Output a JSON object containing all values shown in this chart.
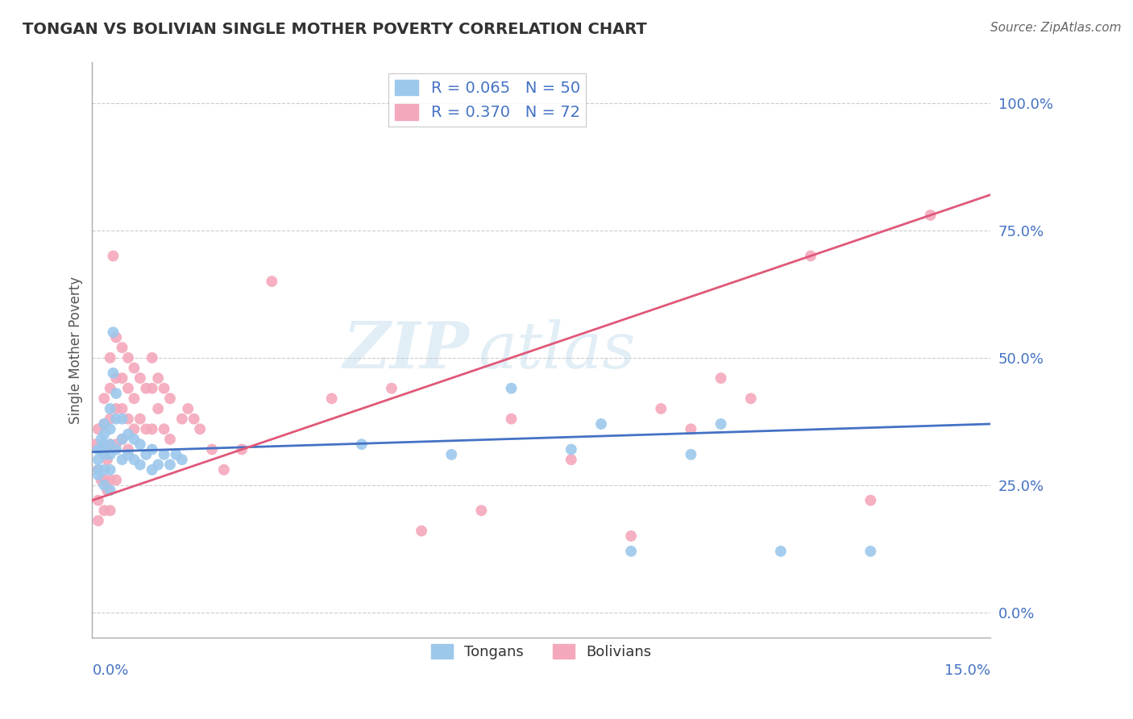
{
  "title": "TONGAN VS BOLIVIAN SINGLE MOTHER POVERTY CORRELATION CHART",
  "source": "Source: ZipAtlas.com",
  "ylabel": "Single Mother Poverty",
  "y_ticks": [
    0.0,
    0.25,
    0.5,
    0.75,
    1.0
  ],
  "y_tick_labels": [
    "0.0%",
    "25.0%",
    "50.0%",
    "75.0%",
    "100.0%"
  ],
  "xlim": [
    0.0,
    0.15
  ],
  "ylim": [
    -0.05,
    1.08
  ],
  "tongan_R": 0.065,
  "tongan_N": 50,
  "bolivian_R": 0.37,
  "bolivian_N": 72,
  "tongan_color": "#9CC8EC",
  "bolivian_color": "#F4A8BC",
  "tongan_line_color": "#4472C4",
  "bolivian_line_color": "#E05878",
  "watermark_zip": "ZIP",
  "watermark_atlas": "atlas",
  "background_color": "#FFFFFF",
  "grid_color": "#CCCCCC",
  "tick_label_color": "#4472C4",
  "tongan_line_y0": 0.315,
  "tongan_line_y1": 0.37,
  "bolivian_line_y0": 0.22,
  "bolivian_line_y1": 0.82,
  "tongan_x": [
    0.001,
    0.001,
    0.001,
    0.001,
    0.0015,
    0.0015,
    0.002,
    0.002,
    0.002,
    0.002,
    0.002,
    0.002,
    0.003,
    0.003,
    0.003,
    0.003,
    0.003,
    0.003,
    0.0035,
    0.0035,
    0.004,
    0.004,
    0.004,
    0.005,
    0.005,
    0.005,
    0.006,
    0.006,
    0.007,
    0.007,
    0.008,
    0.008,
    0.009,
    0.01,
    0.01,
    0.011,
    0.012,
    0.013,
    0.014,
    0.015,
    0.045,
    0.06,
    0.07,
    0.08,
    0.085,
    0.09,
    0.1,
    0.105,
    0.115,
    0.13
  ],
  "tongan_y": [
    0.32,
    0.3,
    0.28,
    0.27,
    0.34,
    0.32,
    0.37,
    0.35,
    0.33,
    0.31,
    0.28,
    0.25,
    0.4,
    0.36,
    0.33,
    0.31,
    0.28,
    0.24,
    0.55,
    0.47,
    0.43,
    0.38,
    0.32,
    0.38,
    0.34,
    0.3,
    0.35,
    0.31,
    0.34,
    0.3,
    0.33,
    0.29,
    0.31,
    0.32,
    0.28,
    0.29,
    0.31,
    0.29,
    0.31,
    0.3,
    0.33,
    0.31,
    0.44,
    0.32,
    0.37,
    0.12,
    0.31,
    0.37,
    0.12,
    0.12
  ],
  "bolivian_x": [
    0.0005,
    0.001,
    0.001,
    0.001,
    0.001,
    0.0015,
    0.0015,
    0.002,
    0.002,
    0.002,
    0.002,
    0.002,
    0.0025,
    0.0025,
    0.003,
    0.003,
    0.003,
    0.003,
    0.003,
    0.003,
    0.0035,
    0.004,
    0.004,
    0.004,
    0.004,
    0.004,
    0.005,
    0.005,
    0.005,
    0.005,
    0.006,
    0.006,
    0.006,
    0.006,
    0.007,
    0.007,
    0.007,
    0.008,
    0.008,
    0.009,
    0.009,
    0.01,
    0.01,
    0.01,
    0.011,
    0.011,
    0.012,
    0.012,
    0.013,
    0.013,
    0.015,
    0.016,
    0.017,
    0.018,
    0.02,
    0.022,
    0.025,
    0.03,
    0.04,
    0.05,
    0.055,
    0.065,
    0.07,
    0.08,
    0.09,
    0.095,
    0.1,
    0.105,
    0.11,
    0.12,
    0.13,
    0.14
  ],
  "bolivian_y": [
    0.33,
    0.36,
    0.28,
    0.22,
    0.18,
    0.32,
    0.26,
    0.42,
    0.37,
    0.32,
    0.26,
    0.2,
    0.3,
    0.24,
    0.5,
    0.44,
    0.38,
    0.33,
    0.26,
    0.2,
    0.7,
    0.54,
    0.46,
    0.4,
    0.33,
    0.26,
    0.52,
    0.46,
    0.4,
    0.34,
    0.5,
    0.44,
    0.38,
    0.32,
    0.48,
    0.42,
    0.36,
    0.46,
    0.38,
    0.44,
    0.36,
    0.5,
    0.44,
    0.36,
    0.46,
    0.4,
    0.44,
    0.36,
    0.42,
    0.34,
    0.38,
    0.4,
    0.38,
    0.36,
    0.32,
    0.28,
    0.32,
    0.65,
    0.42,
    0.44,
    0.16,
    0.2,
    0.38,
    0.3,
    0.15,
    0.4,
    0.36,
    0.46,
    0.42,
    0.7,
    0.22,
    0.78
  ]
}
